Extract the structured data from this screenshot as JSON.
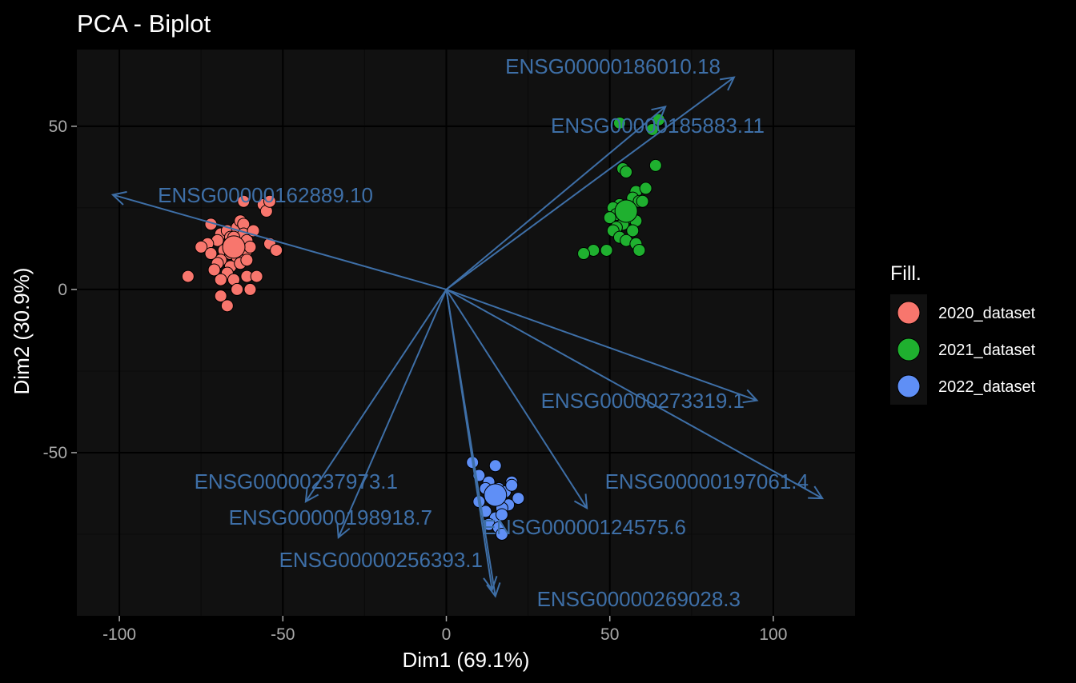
{
  "chart_data": {
    "type": "scatter",
    "title": "PCA - Biplot",
    "xlabel": "Dim1 (69.1%)",
    "ylabel": "Dim2 (30.9%)",
    "xlim": [
      -113,
      125
    ],
    "ylim": [
      -100,
      73.5
    ],
    "xticks": [
      -100,
      -50,
      0,
      50,
      100
    ],
    "yticks": [
      -50,
      0,
      50
    ],
    "xtick_labels": [
      "-100",
      "-50",
      "0",
      "50",
      "100"
    ],
    "ytick_labels": [
      "-50",
      "0",
      "50"
    ],
    "grid": true,
    "legend_position": "right",
    "legend_title": "Fill.",
    "colors": {
      "background": "#000000",
      "panel": "#111111",
      "grid_major": "#000000",
      "grid_minor": "#0a0a0a",
      "arrow": "#3e6fa7",
      "point_outline": "#000000"
    },
    "series": [
      {
        "name": "2020_dataset",
        "color": "#f8766d",
        "centroid": [
          -65,
          13
        ],
        "points": [
          [
            -72,
            20
          ],
          [
            -69,
            17
          ],
          [
            -67,
            18
          ],
          [
            -66,
            16
          ],
          [
            -64,
            19
          ],
          [
            -63,
            21
          ],
          [
            -62,
            20
          ],
          [
            -62,
            17
          ],
          [
            -61,
            15
          ],
          [
            -59,
            18
          ],
          [
            -70,
            15
          ],
          [
            -73,
            14
          ],
          [
            -75,
            13
          ],
          [
            -68,
            12
          ],
          [
            -66,
            11
          ],
          [
            -64,
            10
          ],
          [
            -61,
            12
          ],
          [
            -60,
            13
          ],
          [
            -69,
            9
          ],
          [
            -66,
            7
          ],
          [
            -63,
            8
          ],
          [
            -61,
            9
          ],
          [
            -70,
            8
          ],
          [
            -67,
            5
          ],
          [
            -65,
            3
          ],
          [
            -61,
            4
          ],
          [
            -69,
            3
          ],
          [
            -72,
            11
          ],
          [
            -71,
            6
          ],
          [
            -54,
            14
          ],
          [
            -52,
            12
          ],
          [
            -79,
            4
          ],
          [
            -58,
            4
          ],
          [
            -64,
            0
          ],
          [
            -60,
            0
          ],
          [
            -69,
            -2
          ],
          [
            -67,
            -5
          ],
          [
            -62,
            27
          ],
          [
            -56,
            26
          ],
          [
            -55,
            24
          ],
          [
            -54,
            27
          ],
          [
            -65,
            16
          ]
        ]
      },
      {
        "name": "2021_dataset",
        "color": "#1fb02f",
        "centroid": [
          55,
          24
        ],
        "points": [
          [
            53,
            51
          ],
          [
            65,
            52
          ],
          [
            63,
            49
          ],
          [
            54,
            37
          ],
          [
            55,
            36
          ],
          [
            64,
            38
          ],
          [
            58,
            30
          ],
          [
            61,
            31
          ],
          [
            57,
            28
          ],
          [
            59,
            27
          ],
          [
            53,
            26
          ],
          [
            51,
            25
          ],
          [
            52,
            23
          ],
          [
            50,
            22
          ],
          [
            56,
            22
          ],
          [
            58,
            21
          ],
          [
            54,
            20
          ],
          [
            52,
            19
          ],
          [
            51,
            18
          ],
          [
            57,
            18
          ],
          [
            53,
            16
          ],
          [
            55,
            15
          ],
          [
            58,
            14
          ],
          [
            49,
            12
          ],
          [
            45,
            12
          ],
          [
            42,
            11
          ],
          [
            59,
            12
          ],
          [
            60,
            27
          ],
          [
            56,
            24
          ]
        ]
      },
      {
        "name": "2022_dataset",
        "color": "#5f8ff6",
        "centroid": [
          15,
          -63
        ],
        "points": [
          [
            8,
            -53
          ],
          [
            15,
            -54
          ],
          [
            10,
            -57
          ],
          [
            13,
            -59
          ],
          [
            20,
            -59
          ],
          [
            12,
            -61
          ],
          [
            16,
            -61
          ],
          [
            18,
            -62
          ],
          [
            14,
            -64
          ],
          [
            22,
            -64
          ],
          [
            19,
            -66
          ],
          [
            17,
            -67
          ],
          [
            12,
            -68
          ],
          [
            15,
            -70
          ],
          [
            17,
            -69
          ],
          [
            13,
            -72
          ],
          [
            16,
            -73
          ],
          [
            17,
            -75
          ],
          [
            10,
            -65
          ],
          [
            20,
            -60
          ]
        ]
      }
    ],
    "variables": [
      {
        "name": "ENSG00000186010.18",
        "x": 88,
        "y": 65
      },
      {
        "name": "ENSG00000185883.11",
        "x": 67,
        "y": 56
      },
      {
        "name": "ENSG00000162889.10",
        "x": -102,
        "y": 29
      },
      {
        "name": "ENSG00000273319.1",
        "x": 95,
        "y": -34
      },
      {
        "name": "ENSG00000197061.4",
        "x": 115,
        "y": -64
      },
      {
        "name": "ENSG00000237973.1",
        "x": -43,
        "y": -65
      },
      {
        "name": "ENSG00000198918.7",
        "x": -33,
        "y": -76
      },
      {
        "name": "ENSG00000124575.6",
        "x": 43,
        "y": -67
      },
      {
        "name": "ENSG00000256393.1",
        "x": 14,
        "y": -92
      },
      {
        "name": "ENSG00000269028.3",
        "x": 15,
        "y": -94
      }
    ]
  }
}
